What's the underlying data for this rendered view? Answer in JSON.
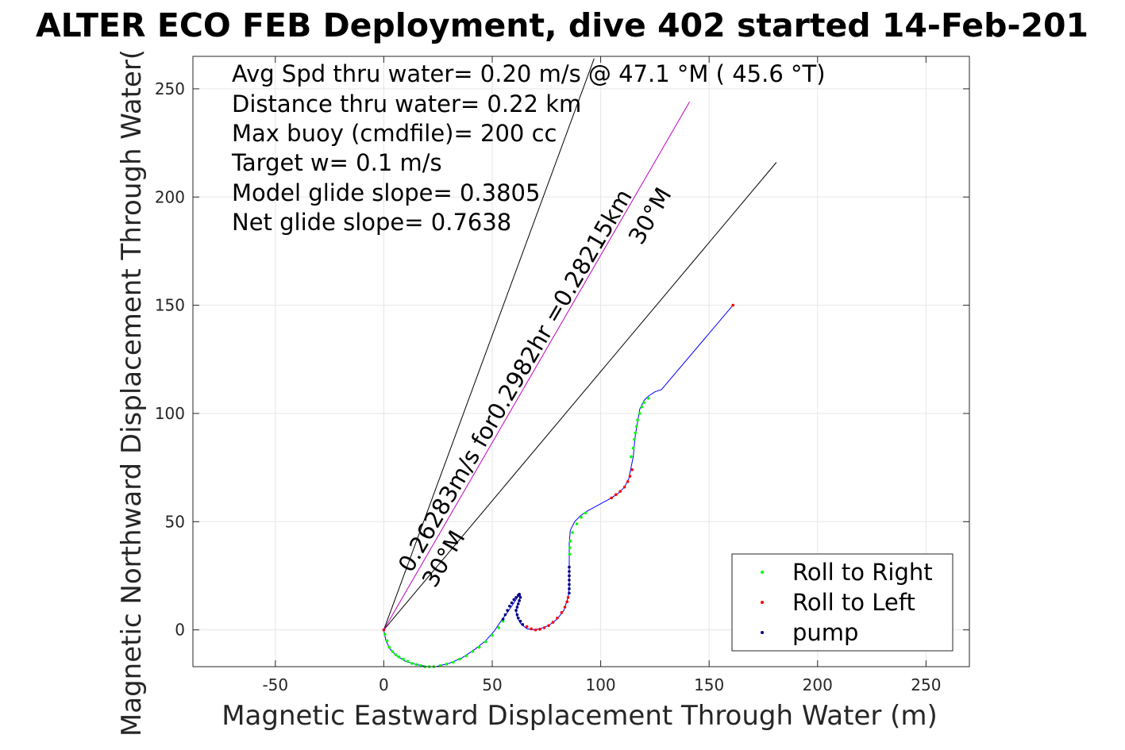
{
  "chart_data": {
    "type": "line",
    "title": "ALTER ECO FEB Deployment, dive 402 started 14-Feb-201",
    "xlabel": "Magnetic Eastward Displacement Through Water (m)",
    "ylabel": "Magnetic Northward Displacement Through Water(",
    "xlim": [
      -88,
      270
    ],
    "ylim": [
      -17,
      265
    ],
    "xticks": [
      -50,
      0,
      50,
      100,
      150,
      200,
      250
    ],
    "yticks": [
      0,
      50,
      100,
      150,
      200,
      250
    ],
    "grid": true,
    "info_lines": [
      "Avg Spd thru water=  0.20 m/s @  47.1 °M ( 45.6 °T)",
      "Distance thru water=  0.22 km",
      "Max buoy (cmdfile)= 200 cc",
      "Target w= 0.1 m/s",
      "Model glide slope= 0.3805",
      "Net glide slope= 0.7638"
    ],
    "annotations": {
      "speed_text": "0.26283m/s for0.2982hr =0.28215km",
      "angle_label_upper": "30°M",
      "angle_label_lower": "30°M"
    },
    "reference_lines": [
      {
        "name": "",
        "color": "#000000",
        "x": [
          0,
          97
        ],
        "y": [
          0,
          264
        ]
      },
      {
        "name": "",
        "color": "#000000",
        "x": [
          0,
          181
        ],
        "y": [
          0,
          216
        ]
      },
      {
        "name": "",
        "color": "#c000c0",
        "x": [
          0,
          141
        ],
        "y": [
          0,
          244
        ]
      }
    ],
    "track": {
      "color": "#0000ff",
      "x": [
        0,
        1,
        3,
        6,
        10,
        15,
        20,
        24,
        30,
        36,
        42,
        47,
        51,
        54,
        57,
        59,
        61,
        62,
        63,
        62.5,
        61.5,
        61,
        61.5,
        63,
        66,
        69,
        72,
        76,
        80,
        83,
        85,
        85.5,
        85.5,
        85.5,
        85.5,
        86,
        88,
        91,
        94,
        105,
        108,
        111,
        113,
        114,
        115,
        115.5,
        116,
        117,
        118,
        120,
        122,
        125,
        128,
        161
      ],
      "y": [
        0,
        -5,
        -9,
        -12,
        -14.5,
        -16,
        -17,
        -17,
        -15.5,
        -13,
        -9,
        -5,
        -0.5,
        4,
        8,
        11,
        14,
        15.5,
        16,
        14,
        11,
        8.5,
        6,
        3,
        0.5,
        0,
        0.5,
        2,
        5,
        9,
        15,
        20,
        25,
        30,
        40,
        46,
        50,
        53,
        55,
        61,
        63,
        66,
        70,
        75,
        80,
        85,
        90,
        96,
        102,
        106,
        108,
        110,
        111,
        150
      ]
    },
    "markers": [
      {
        "name": "Roll to Right",
        "color": "#00ff00",
        "x": [
          0.5,
          1.5,
          2.5,
          4,
          5.5,
          7,
          9,
          11,
          13,
          15,
          17,
          19,
          21,
          23,
          26,
          29,
          32,
          35,
          38,
          41,
          44,
          47,
          50,
          53,
          55,
          85.7,
          85.8,
          86,
          87,
          89,
          91,
          93,
          114,
          115,
          115.5,
          116,
          116.5,
          117,
          118,
          119,
          120,
          122
        ],
        "y": [
          -2,
          -5,
          -8,
          -10,
          -11.5,
          -12.5,
          -13.5,
          -14.5,
          -15.5,
          -16,
          -16.5,
          -17,
          -17,
          -17,
          -16.5,
          -15.8,
          -15,
          -13.5,
          -12,
          -10,
          -8,
          -5.5,
          -2.5,
          1,
          4,
          35,
          38,
          41,
          45,
          49,
          52,
          54,
          80,
          84,
          88,
          91,
          94,
          97,
          100,
          103,
          105,
          107
        ]
      },
      {
        "name": "Roll to Left",
        "color": "#ff0000",
        "x": [
          0,
          66,
          68,
          70,
          72,
          74,
          76,
          78,
          80,
          82,
          83.5,
          84.5,
          85,
          105,
          107,
          109,
          111,
          112.5,
          113.5,
          114.5,
          161
        ],
        "y": [
          0,
          1.5,
          0.5,
          0,
          0.3,
          1,
          2,
          3.5,
          5.5,
          8,
          10.5,
          13,
          15,
          61,
          62.5,
          64,
          66,
          68.5,
          71,
          74,
          150
        ]
      },
      {
        "name": "pump",
        "color": "#000080",
        "x": [
          55,
          56,
          57,
          58,
          59,
          60,
          61,
          62,
          62.5,
          63,
          62.5,
          62,
          61.5,
          61,
          61.5,
          62,
          63,
          64,
          85.5,
          85.5,
          85.5,
          85.5,
          85.5,
          85.5,
          85.5
        ],
        "y": [
          5,
          7,
          9,
          11,
          12.5,
          14,
          15,
          16,
          16.5,
          15,
          13.5,
          12,
          10.5,
          9,
          7,
          5.5,
          4,
          2.5,
          17,
          19,
          21,
          23,
          25,
          27,
          29
        ]
      }
    ]
  }
}
